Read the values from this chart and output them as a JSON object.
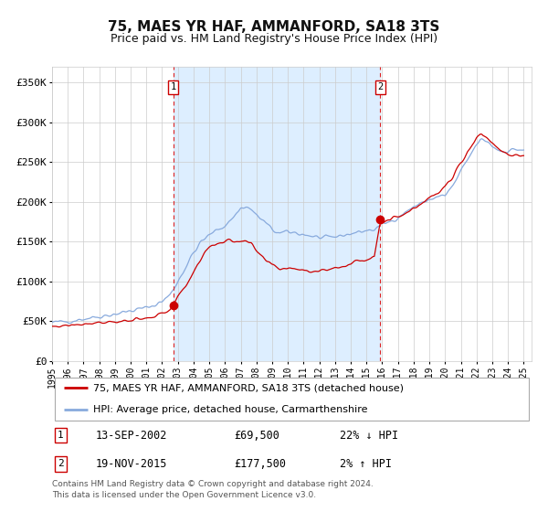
{
  "title": "75, MAES YR HAF, AMMANFORD, SA18 3TS",
  "subtitle": "Price paid vs. HM Land Registry's House Price Index (HPI)",
  "ylabel_ticks": [
    "£0",
    "£50K",
    "£100K",
    "£150K",
    "£200K",
    "£250K",
    "£300K",
    "£350K"
  ],
  "ytick_values": [
    0,
    50000,
    100000,
    150000,
    200000,
    250000,
    300000,
    350000
  ],
  "ylim": [
    0,
    370000
  ],
  "sale1_x": 2002.71,
  "sale1_price": 69500,
  "sale2_x": 2015.88,
  "sale2_price": 177500,
  "red_line_color": "#cc0000",
  "blue_line_color": "#88aadd",
  "shade_color": "#ddeeff",
  "dot_color": "#cc0000",
  "dashed_color": "#dd2222",
  "grid_color": "#cccccc",
  "background_color": "#ffffff",
  "title_fontsize": 11,
  "subtitle_fontsize": 9,
  "legend_label_red": "75, MAES YR HAF, AMMANFORD, SA18 3TS (detached house)",
  "legend_label_blue": "HPI: Average price, detached house, Carmarthenshire",
  "footer_text": "Contains HM Land Registry data © Crown copyright and database right 2024.\nThis data is licensed under the Open Government Licence v3.0.",
  "table_rows": [
    [
      "1",
      "13-SEP-2002",
      "£69,500",
      "22% ↓ HPI"
    ],
    [
      "2",
      "19-NOV-2015",
      "£177,500",
      "2% ↑ HPI"
    ]
  ],
  "xmin": 1995.0,
  "xmax": 2025.5,
  "blue_anchors_x": [
    1995.0,
    1995.5,
    1996.0,
    1996.5,
    1997.0,
    1997.5,
    1998.0,
    1998.5,
    1999.0,
    1999.5,
    2000.0,
    2000.5,
    2001.0,
    2001.5,
    2002.0,
    2002.5,
    2003.0,
    2003.5,
    2004.0,
    2004.5,
    2005.0,
    2005.5,
    2006.0,
    2006.5,
    2007.0,
    2007.3,
    2007.7,
    2008.0,
    2008.5,
    2009.0,
    2009.5,
    2010.0,
    2010.5,
    2011.0,
    2011.5,
    2012.0,
    2012.5,
    2013.0,
    2013.5,
    2014.0,
    2014.5,
    2015.0,
    2015.5,
    2015.88,
    2016.0,
    2016.5,
    2017.0,
    2017.5,
    2018.0,
    2018.5,
    2019.0,
    2019.5,
    2020.0,
    2020.5,
    2021.0,
    2021.5,
    2022.0,
    2022.3,
    2022.7,
    2023.0,
    2023.5,
    2024.0,
    2024.5,
    2025.0
  ],
  "blue_anchors_y": [
    48000,
    49000,
    50000,
    51500,
    53000,
    54500,
    56000,
    57500,
    59000,
    61000,
    63000,
    65000,
    67000,
    70000,
    75000,
    83000,
    100000,
    118000,
    136000,
    150000,
    158000,
    165000,
    170000,
    180000,
    192000,
    194000,
    190000,
    183000,
    175000,
    165000,
    160000,
    162000,
    161000,
    159000,
    157000,
    155000,
    154000,
    156000,
    158000,
    160000,
    162000,
    164000,
    165000,
    170000,
    172000,
    175000,
    181000,
    187000,
    194000,
    198000,
    203000,
    206000,
    208000,
    220000,
    238000,
    255000,
    272000,
    278000,
    276000,
    270000,
    264000,
    264000,
    266000,
    265000
  ],
  "red_anchors_x": [
    1995.0,
    1995.5,
    1996.0,
    1996.5,
    1997.0,
    1997.5,
    1998.0,
    1998.5,
    1999.0,
    1999.5,
    2000.0,
    2000.5,
    2001.0,
    2001.5,
    2002.0,
    2002.5,
    2002.71,
    2003.0,
    2003.5,
    2004.0,
    2004.5,
    2005.0,
    2005.5,
    2006.0,
    2006.5,
    2007.0,
    2007.3,
    2007.7,
    2008.0,
    2008.5,
    2009.0,
    2009.5,
    2010.0,
    2010.5,
    2011.0,
    2011.5,
    2012.0,
    2012.5,
    2013.0,
    2013.5,
    2014.0,
    2014.5,
    2015.0,
    2015.5,
    2015.88,
    2016.0,
    2016.5,
    2017.0,
    2017.5,
    2018.0,
    2018.5,
    2019.0,
    2019.5,
    2020.0,
    2020.5,
    2021.0,
    2021.5,
    2022.0,
    2022.3,
    2022.7,
    2023.0,
    2023.5,
    2024.0,
    2024.5,
    2025.0
  ],
  "red_anchors_y": [
    43000,
    44000,
    45000,
    46000,
    47000,
    48000,
    48500,
    49000,
    49500,
    50000,
    50500,
    51500,
    53000,
    55000,
    60000,
    65000,
    69500,
    80000,
    95000,
    112000,
    130000,
    143000,
    148000,
    150000,
    151000,
    151500,
    150000,
    146000,
    138000,
    127000,
    120000,
    116000,
    117000,
    116000,
    115000,
    113000,
    113000,
    115000,
    117000,
    119000,
    122000,
    126000,
    128000,
    132000,
    177500,
    175000,
    177000,
    182000,
    186000,
    193000,
    198000,
    205000,
    210000,
    218000,
    232000,
    250000,
    265000,
    280000,
    286000,
    280000,
    274000,
    266000,
    260000,
    258000,
    255000
  ]
}
